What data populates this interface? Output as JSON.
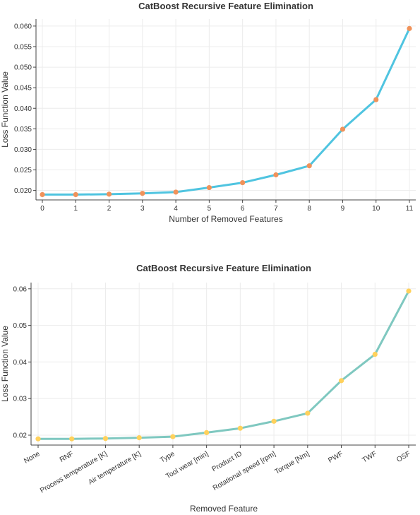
{
  "chart_data": [
    {
      "type": "line",
      "title": "CatBoost Recursive Feature Elimination",
      "xlabel": "Number of Removed Features",
      "ylabel": "Loss Function Value",
      "x": [
        0,
        1,
        2,
        3,
        4,
        5,
        6,
        7,
        8,
        9,
        10,
        11
      ],
      "x_tick_labels": [
        "0",
        "1",
        "2",
        "3",
        "4",
        "5",
        "6",
        "7",
        "8",
        "9",
        "10",
        "11"
      ],
      "values": [
        0.019,
        0.019,
        0.0191,
        0.0193,
        0.0196,
        0.0207,
        0.0219,
        0.0238,
        0.026,
        0.0349,
        0.0421,
        0.0594
      ],
      "ylim": [
        0.0177,
        0.0617
      ],
      "y_ticks": [
        0.02,
        0.025,
        0.03,
        0.035,
        0.04,
        0.045,
        0.05,
        0.055,
        0.06
      ],
      "y_tick_labels": [
        "0.020",
        "0.025",
        "0.030",
        "0.035",
        "0.040",
        "0.045",
        "0.050",
        "0.055",
        "0.060"
      ],
      "line_color": "#4fc4e0",
      "marker_color": "#f0925a",
      "grid": true
    },
    {
      "type": "line",
      "title": "CatBoost Recursive Feature Elimination",
      "xlabel": "Removed Feature",
      "ylabel": "Loss Function Value",
      "categories": [
        "None",
        "RNF",
        "Process temperature [K]",
        "Air temperature [K]",
        "Type",
        "Tool wear [min]",
        "Product ID",
        "Rotational speed [rpm]",
        "Torque [Nm]",
        "PWF",
        "TWF",
        "OSF"
      ],
      "values": [
        0.019,
        0.019,
        0.0191,
        0.0193,
        0.0196,
        0.0207,
        0.0219,
        0.0238,
        0.026,
        0.0349,
        0.0421,
        0.0594
      ],
      "ylim": [
        0.0173,
        0.0617
      ],
      "y_ticks": [
        0.02,
        0.03,
        0.04,
        0.05,
        0.06
      ],
      "y_tick_labels": [
        "0.02",
        "0.03",
        "0.04",
        "0.05",
        "0.06"
      ],
      "line_color": "#7fc8c0",
      "marker_color": "#ffd15c",
      "grid": true
    }
  ]
}
